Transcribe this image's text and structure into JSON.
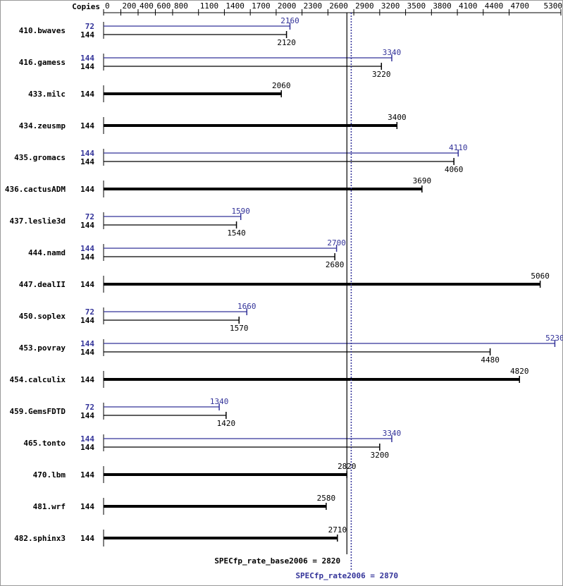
{
  "chart_data": {
    "type": "bar",
    "copies_header": "Copies",
    "categories": [
      "410.bwaves",
      "416.gamess",
      "433.milc",
      "434.zeusmp",
      "435.gromacs",
      "436.cactusADM",
      "437.leslie3d",
      "444.namd",
      "447.dealII",
      "450.soplex",
      "453.povray",
      "454.calculix",
      "459.GemsFDTD",
      "465.tonto",
      "470.lbm",
      "481.wrf",
      "482.sphinx3"
    ],
    "series": [
      {
        "color": "#000000",
        "copies": [
          144,
          144,
          144,
          144,
          144,
          144,
          144,
          144,
          144,
          144,
          144,
          144,
          144,
          144,
          144,
          144,
          144
        ],
        "values": [
          2120,
          3220,
          2060,
          3400,
          4060,
          3690,
          1540,
          2680,
          5060,
          1570,
          4480,
          4820,
          1420,
          3200,
          2820,
          2580,
          2710
        ]
      },
      {
        "color": "#333399",
        "copies": [
          72,
          144,
          null,
          null,
          144,
          null,
          72,
          144,
          null,
          72,
          144,
          null,
          72,
          144,
          null,
          null,
          null
        ],
        "values": [
          2160,
          3340,
          null,
          null,
          4110,
          null,
          1590,
          2700,
          null,
          1660,
          5230,
          null,
          1340,
          3340,
          null,
          null,
          null
        ]
      }
    ],
    "xlim": [
      0,
      5300
    ],
    "xticks": [
      0,
      200,
      400,
      600,
      800,
      1100,
      1400,
      1700,
      2000,
      2300,
      2600,
      2900,
      3200,
      3500,
      3800,
      4100,
      4400,
      4700,
      5300
    ],
    "reference_lines": [
      {
        "value": 2820,
        "label": "SPECfp_rate_base2006 = 2820",
        "color": "#000000"
      },
      {
        "value": 2870,
        "label": "SPECfp_rate2006 = 2870",
        "color": "#333399"
      }
    ]
  }
}
